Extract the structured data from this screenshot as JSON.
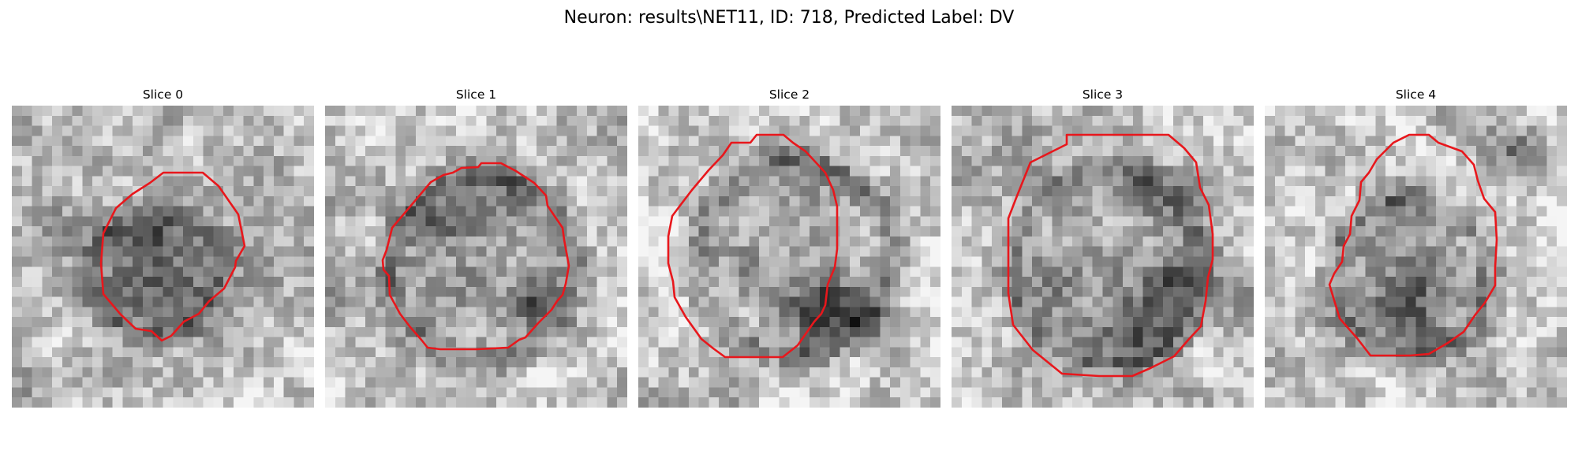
{
  "figure": {
    "title": "Neuron: results\\NET11, ID: 718, Predicted Label: DV"
  },
  "slices": [
    {
      "label": "Slice 0"
    },
    {
      "label": "Slice 1"
    },
    {
      "label": "Slice 2"
    },
    {
      "label": "Slice 3"
    },
    {
      "label": "Slice 4"
    }
  ],
  "style": {
    "contour_color": "#e8171c",
    "colormap": "grayscale"
  }
}
